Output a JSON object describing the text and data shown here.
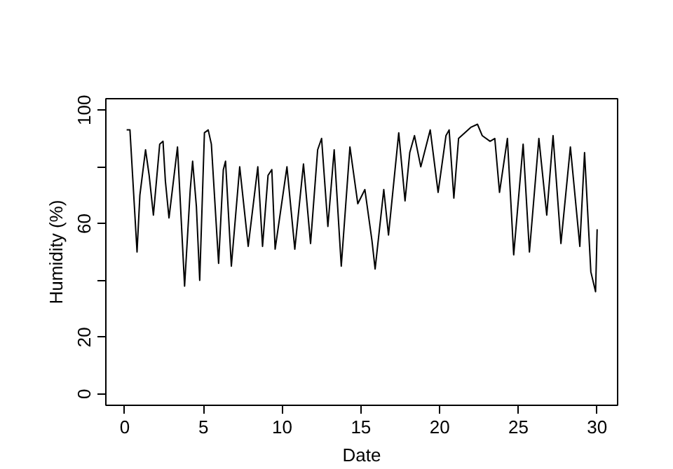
{
  "chart_data": {
    "type": "line",
    "xlabel": "Date",
    "ylabel": "Humidity (%)",
    "x": [
      0.12,
      0.33,
      0.78,
      0.96,
      1.32,
      1.55,
      1.82,
      2.22,
      2.43,
      2.58,
      2.81,
      3.35,
      3.8,
      4.16,
      4.31,
      4.55,
      4.76,
      5.06,
      5.3,
      5.5,
      5.96,
      6.26,
      6.4,
      6.77,
      7.3,
      7.84,
      8.45,
      8.75,
      9.1,
      9.34,
      9.55,
      10.3,
      10.8,
      11.35,
      11.8,
      12.25,
      12.5,
      12.9,
      13.3,
      13.75,
      14.3,
      14.8,
      15.25,
      15.7,
      15.9,
      16.45,
      16.75,
      17.4,
      17.8,
      18.1,
      18.4,
      18.8,
      19.4,
      19.9,
      20.4,
      20.6,
      20.9,
      21.2,
      22.0,
      22.4,
      22.7,
      23.2,
      23.5,
      23.8,
      24.3,
      24.7,
      25.3,
      25.7,
      26.3,
      26.8,
      27.2,
      27.7,
      28.3,
      28.9,
      29.2,
      29.6,
      29.9,
      30.0
    ],
    "values": [
      93,
      93,
      50,
      70,
      86,
      77,
      63,
      88,
      89,
      75,
      62,
      87,
      38,
      72,
      82,
      66,
      40,
      92,
      93,
      88,
      46,
      79,
      82,
      45,
      80,
      52,
      80,
      52,
      77,
      79,
      51,
      80,
      51,
      81,
      53,
      86,
      90,
      59,
      86,
      45,
      87,
      67,
      72,
      54,
      44,
      72,
      56,
      92,
      68,
      85,
      91,
      80,
      93,
      71,
      91,
      93,
      69,
      90,
      94,
      95,
      91,
      89,
      90,
      71,
      90,
      49,
      88,
      50,
      90,
      63,
      91,
      53,
      87,
      52,
      85,
      43,
      36,
      58
    ],
    "color": "#000000",
    "line_style": "solid",
    "marker": "none",
    "grid": false,
    "xlim": [
      -1.2,
      31.3
    ],
    "ylim": [
      -4,
      104
    ],
    "xticks": [
      0,
      5,
      10,
      15,
      20,
      25,
      30
    ],
    "yticks": [
      0,
      20,
      {
        "value": 40,
        "label": null
      },
      60,
      {
        "value": 80,
        "label": null
      },
      100
    ]
  }
}
